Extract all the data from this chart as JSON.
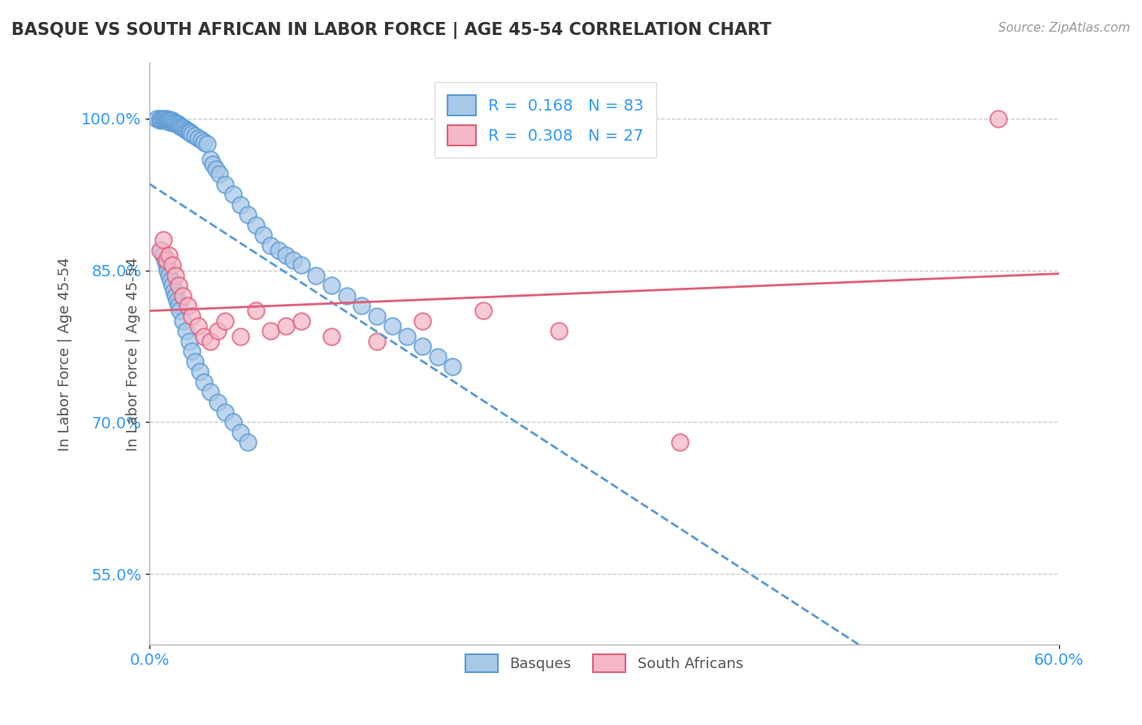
{
  "title": "BASQUE VS SOUTH AFRICAN IN LABOR FORCE | AGE 45-54 CORRELATION CHART",
  "source": "Source: ZipAtlas.com",
  "xlabel_ticks": [
    "0.0%",
    "60.0%"
  ],
  "ylabel_label": "In Labor Force | Age 45-54",
  "ytick_vals": [
    0.55,
    0.7,
    0.85,
    1.0
  ],
  "ytick_labels": [
    "55.0%",
    "70.0%",
    "85.0%",
    "100.0%"
  ],
  "xmin": 0.0,
  "xmax": 0.6,
  "ymin": 0.48,
  "ymax": 1.055,
  "r_basque": 0.168,
  "n_basque": 83,
  "r_south_african": 0.308,
  "n_south_african": 27,
  "legend_basque": "Basques",
  "legend_sa": "South Africans",
  "color_basque_fill": "#a8c8e8",
  "color_basque_edge": "#5b9bd5",
  "color_sa_fill": "#f4b8c8",
  "color_sa_edge": "#e0607a",
  "color_basque_line": "#5b9bd5",
  "color_sa_line": "#e0607a",
  "background": "#ffffff",
  "grid_color": "#c8c8c8",
  "tick_color": "#3399ff",
  "title_color": "#333333",
  "source_color": "#999999",
  "ylabel_color": "#555555",
  "basque_x": [
    0.005,
    0.007,
    0.007,
    0.008,
    0.009,
    0.01,
    0.01,
    0.011,
    0.012,
    0.013,
    0.013,
    0.014,
    0.015,
    0.015,
    0.016,
    0.017,
    0.018,
    0.019,
    0.02,
    0.021,
    0.022,
    0.023,
    0.024,
    0.025,
    0.026,
    0.027,
    0.028,
    0.03,
    0.032,
    0.034,
    0.036,
    0.038,
    0.04,
    0.042,
    0.044,
    0.046,
    0.05,
    0.055,
    0.06,
    0.065,
    0.07,
    0.075,
    0.08,
    0.085,
    0.09,
    0.095,
    0.1,
    0.11,
    0.12,
    0.13,
    0.14,
    0.15,
    0.16,
    0.17,
    0.18,
    0.19,
    0.2,
    0.008,
    0.009,
    0.01,
    0.011,
    0.012,
    0.013,
    0.014,
    0.015,
    0.016,
    0.017,
    0.018,
    0.019,
    0.02,
    0.022,
    0.024,
    0.026,
    0.028,
    0.03,
    0.033,
    0.036,
    0.04,
    0.045,
    0.05,
    0.055,
    0.06,
    0.065
  ],
  "basque_y": [
    1.0,
    0.998,
    1.0,
    0.999,
    1.0,
    0.998,
    0.999,
    1.0,
    0.998,
    0.997,
    0.999,
    0.998,
    0.996,
    0.998,
    0.997,
    0.996,
    0.995,
    0.994,
    0.993,
    0.992,
    0.991,
    0.99,
    0.989,
    0.988,
    0.987,
    0.986,
    0.985,
    0.983,
    0.981,
    0.979,
    0.977,
    0.975,
    0.96,
    0.955,
    0.95,
    0.945,
    0.935,
    0.925,
    0.915,
    0.905,
    0.895,
    0.885,
    0.875,
    0.87,
    0.865,
    0.86,
    0.855,
    0.845,
    0.835,
    0.825,
    0.815,
    0.805,
    0.795,
    0.785,
    0.775,
    0.765,
    0.755,
    0.87,
    0.865,
    0.86,
    0.855,
    0.85,
    0.845,
    0.84,
    0.835,
    0.83,
    0.825,
    0.82,
    0.815,
    0.81,
    0.8,
    0.79,
    0.78,
    0.77,
    0.76,
    0.75,
    0.74,
    0.73,
    0.72,
    0.71,
    0.7,
    0.69,
    0.68
  ],
  "sa_x": [
    0.007,
    0.009,
    0.011,
    0.013,
    0.015,
    0.017,
    0.019,
    0.022,
    0.025,
    0.028,
    0.032,
    0.036,
    0.04,
    0.045,
    0.05,
    0.06,
    0.07,
    0.08,
    0.09,
    0.1,
    0.12,
    0.15,
    0.18,
    0.22,
    0.27,
    0.35,
    0.56
  ],
  "sa_y": [
    0.87,
    0.88,
    0.86,
    0.865,
    0.855,
    0.845,
    0.835,
    0.825,
    0.815,
    0.805,
    0.795,
    0.785,
    0.78,
    0.79,
    0.8,
    0.785,
    0.81,
    0.79,
    0.795,
    0.8,
    0.785,
    0.78,
    0.8,
    0.81,
    0.79,
    0.68,
    1.0
  ]
}
